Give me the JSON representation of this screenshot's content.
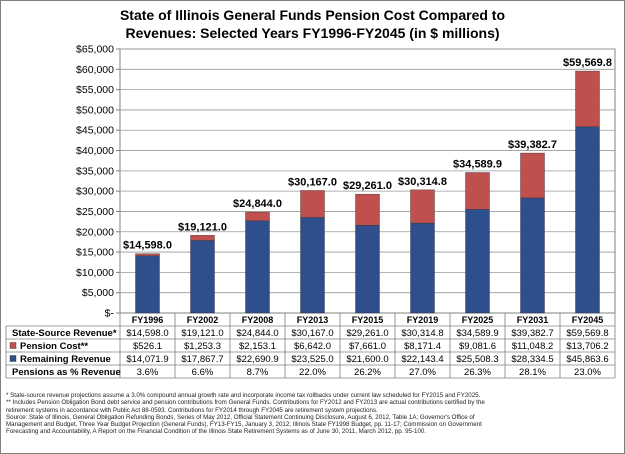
{
  "chart_data": {
    "type": "bar",
    "stacked": true,
    "title": [
      "State of Illinois General Funds Pension Cost Compared to",
      "Revenues: Selected Years FY1996-FY2045 (in $ millions)"
    ],
    "categories": [
      "FY1996",
      "FY2002",
      "FY2008",
      "FY2013",
      "FY2015",
      "FY2019",
      "FY2025",
      "FY2031",
      "FY2045"
    ],
    "ylim": [
      0,
      65000
    ],
    "yticks": [
      0,
      5000,
      10000,
      15000,
      20000,
      25000,
      30000,
      35000,
      40000,
      45000,
      50000,
      55000,
      60000,
      65000
    ],
    "ytick_labels": [
      "$-",
      "$5,000",
      "$10,000",
      "$15,000",
      "$20,000",
      "$25,000",
      "$30,000",
      "$35,000",
      "$40,000",
      "$45,000",
      "$50,000",
      "$55,000",
      "$60,000",
      "$65,000"
    ],
    "grid": true,
    "series": [
      {
        "name": "Remaining Revenue",
        "color": "#2e4e8c",
        "values": [
          14071.9,
          17867.7,
          22690.9,
          23525.0,
          21600.0,
          22143.4,
          25508.3,
          28334.5,
          45863.6
        ]
      },
      {
        "name": "Pension Cost**",
        "color": "#c0504d",
        "values": [
          526.1,
          1253.3,
          2153.1,
          6642.0,
          7661.0,
          8171.4,
          9081.6,
          11048.2,
          13706.2
        ]
      }
    ],
    "total_labels": [
      "$14,598.0",
      "$19,121.0",
      "$24,844.0",
      "$30,167.0",
      "$29,261.0",
      "$30,314.8",
      "$34,589.9",
      "$39,382.7",
      "$59,569.8"
    ],
    "table": {
      "rows": [
        {
          "label": "State-Source Revenue*",
          "swatch": null,
          "cells": [
            "$14,598.0",
            "$19,121.0",
            "$24,844.0",
            "$30,167.0",
            "$29,261.0",
            "$30,314.8",
            "$34,589.9",
            "$39,382.7",
            "$59,569.8"
          ]
        },
        {
          "label": "Pension Cost**",
          "swatch": "#c0504d",
          "cells": [
            "$526.1",
            "$1,253.3",
            "$2,153.1",
            "$6,642.0",
            "$7,661.0",
            "$8,171.4",
            "$9,081.6",
            "$11,048.2",
            "$13,706.2"
          ]
        },
        {
          "label": "Remaining Revenue",
          "swatch": "#2e4e8c",
          "cells": [
            "$14,071.9",
            "$17,867.7",
            "$22,690.9",
            "$23,525.0",
            "$21,600.0",
            "$22,143.4",
            "$25,508.3",
            "$28,334.5",
            "$45,863.6"
          ]
        },
        {
          "label": "Pensions as % Revenue",
          "swatch": null,
          "cells": [
            "3.6%",
            "6.6%",
            "8.7%",
            "22.0%",
            "26.2%",
            "27.0%",
            "26.3%",
            "28.1%",
            "23.0%"
          ]
        }
      ]
    }
  },
  "footnotes": [
    "* State-source revenue projections assume a 3.0% compound annual growth rate and incorporate income tax rollbacks under current law scheduled for FY2015 and FY2025.",
    "** Includes Pension Obligation Bond debt service and pension contributions from General Funds. Contributions for FY2012 and FY2013 are actual contributions certified by the",
    "retirement systems in accordance with Public Act 88-0593. Contributions for FY2014 through FY2045 are retirement system projections.",
    "Source: State of Illinois, General Obligation Refunding Bonds, Series of May 2012, Official Statement Continuing Disclosure, August 6, 2012, Table 1A; Governor's Office of",
    "Management and Budget, Three Year Budget Projection (General Funds), FY13-FY15, January 3, 2012; Illinois State FY1998 Budget, pp. 11-17; Commission on Government",
    "Forecasting and Accountability, A Report on the Financial Condition of the Illinois State Retirement Systems as of June 30, 2011, March 2012, pp. 95-100."
  ]
}
